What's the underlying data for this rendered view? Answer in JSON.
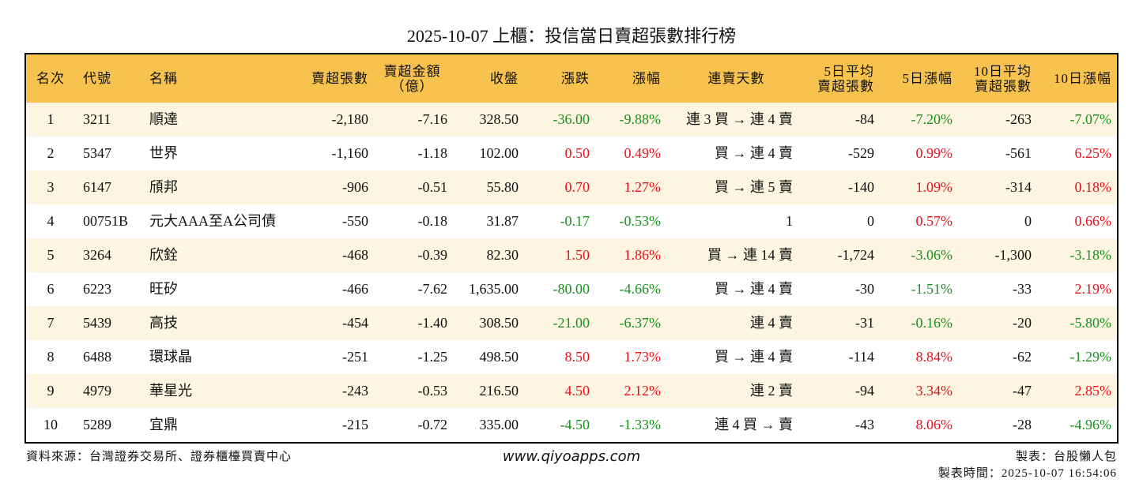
{
  "title": "2025-10-07 上櫃：投信當日賣超張數排行榜",
  "table": {
    "header": [
      "名次",
      "代號",
      "名稱",
      "賣超張數",
      "賣超金額\n（億）",
      "收盤",
      "漲跌",
      "漲幅",
      "連賣天數",
      "5日平均\n賣超張數",
      "5日漲幅",
      "10日平均\n賣超張數",
      "10日漲幅"
    ],
    "rows": [
      [
        "1",
        "3211",
        "順達",
        "-2,180",
        "-7.16",
        "328.50",
        "-36.00",
        "-9.88%",
        "連 3 買 → 連 4 賣",
        "-84",
        "-7.20%",
        "-263",
        "-7.07%"
      ],
      [
        "2",
        "5347",
        "世界",
        "-1,160",
        "-1.18",
        "102.00",
        "0.50",
        "0.49%",
        "買 → 連 4 賣",
        "-529",
        "0.99%",
        "-561",
        "6.25%"
      ],
      [
        "3",
        "6147",
        "頎邦",
        "-906",
        "-0.51",
        "55.80",
        "0.70",
        "1.27%",
        "買 → 連 5 賣",
        "-140",
        "1.09%",
        "-314",
        "0.18%"
      ],
      [
        "4",
        "00751B",
        "元大AAA至A公司債",
        "-550",
        "-0.18",
        "31.87",
        "-0.17",
        "-0.53%",
        "1",
        "0",
        "0.57%",
        "0",
        "0.66%"
      ],
      [
        "5",
        "3264",
        "欣銓",
        "-468",
        "-0.39",
        "82.30",
        "1.50",
        "1.86%",
        "買 → 連 14 賣",
        "-1,724",
        "-3.06%",
        "-1,300",
        "-3.18%"
      ],
      [
        "6",
        "6223",
        "旺矽",
        "-466",
        "-7.62",
        "1,635.00",
        "-80.00",
        "-4.66%",
        "買 → 連 4 賣",
        "-30",
        "-1.51%",
        "-33",
        "2.19%"
      ],
      [
        "7",
        "5439",
        "高技",
        "-454",
        "-1.40",
        "308.50",
        "-21.00",
        "-6.37%",
        "連 4 賣",
        "-31",
        "-0.16%",
        "-20",
        "-5.80%"
      ],
      [
        "8",
        "6488",
        "環球晶",
        "-251",
        "-1.25",
        "498.50",
        "8.50",
        "1.73%",
        "買 → 連 4 賣",
        "-114",
        "8.84%",
        "-62",
        "-1.29%"
      ],
      [
        "9",
        "4979",
        "華星光",
        "-243",
        "-0.53",
        "216.50",
        "4.50",
        "2.12%",
        "連 2 賣",
        "-94",
        "3.34%",
        "-47",
        "2.85%"
      ],
      [
        "10",
        "5289",
        "宜鼎",
        "-215",
        "-0.72",
        "335.00",
        "-4.50",
        "-1.33%",
        "連 4 買 → 賣",
        "-43",
        "8.06%",
        "-28",
        "-4.96%"
      ]
    ]
  },
  "footer": {
    "source": "資料來源：台灣證券交易所、證券櫃檯買賣中心",
    "website": "www.qiyoapps.com",
    "author": "製表：台股懶人包",
    "timestamp": "製表時間：2025-10-07 16:54:06"
  }
}
